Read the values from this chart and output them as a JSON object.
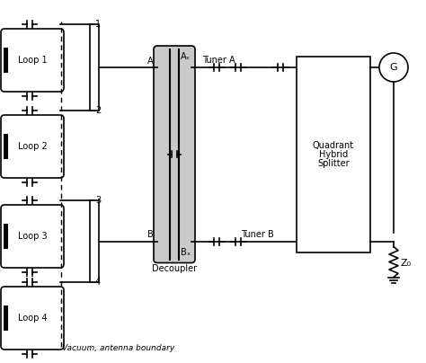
{
  "bg_color": "#ffffff",
  "line_color": "#000000",
  "gray_fill": "#c0c0c0",
  "vacuum_label": "Vacuum, antenna boundary",
  "decoupler_label": "Decoupler",
  "tuner_a_label": "Tuner A",
  "tuner_b_label": "Tuner B",
  "qhs_label": [
    "Quadrant",
    "Hybrid",
    "Splitter"
  ],
  "z0_label": "Z₀",
  "g_label": "G",
  "ad_label": "Aₓ",
  "bd_label": "Bₓ",
  "a_label": "A",
  "b_label": "B",
  "loop_labels": [
    "Loop 1",
    "Loop 2",
    "Loop 3",
    "Loop 4"
  ],
  "node_labels": [
    "1",
    "2",
    "3",
    "4"
  ]
}
